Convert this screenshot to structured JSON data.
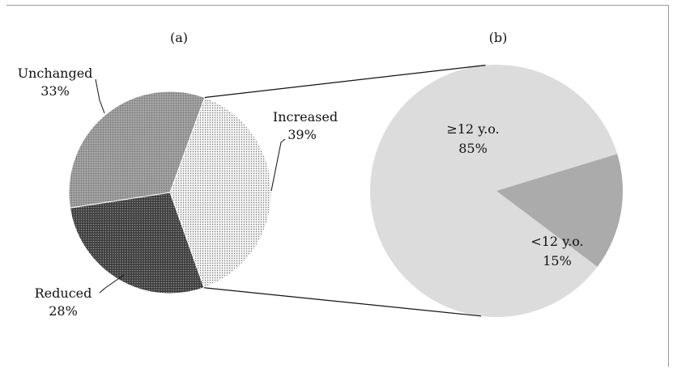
{
  "chart_data": [
    {
      "type": "pie",
      "title": "(a)",
      "slices": [
        {
          "label": "Increased",
          "value_label": "39%",
          "value": 39,
          "pattern": "fine-dots"
        },
        {
          "label": "Reduced",
          "value_label": "28%",
          "value": 28,
          "pattern": "dark-dots"
        },
        {
          "label": "Unchanged",
          "value_label": "33%",
          "value": 33,
          "pattern": "medium-grid"
        }
      ]
    },
    {
      "type": "pie",
      "title": "(b)",
      "slices": [
        {
          "label": "≥12 y.o.",
          "value_label": "85%",
          "value": 85,
          "color": "#dcdcdc"
        },
        {
          "label": "<12 y.o.",
          "value_label": "15%",
          "value": 15,
          "color": "#ababab"
        }
      ]
    }
  ]
}
